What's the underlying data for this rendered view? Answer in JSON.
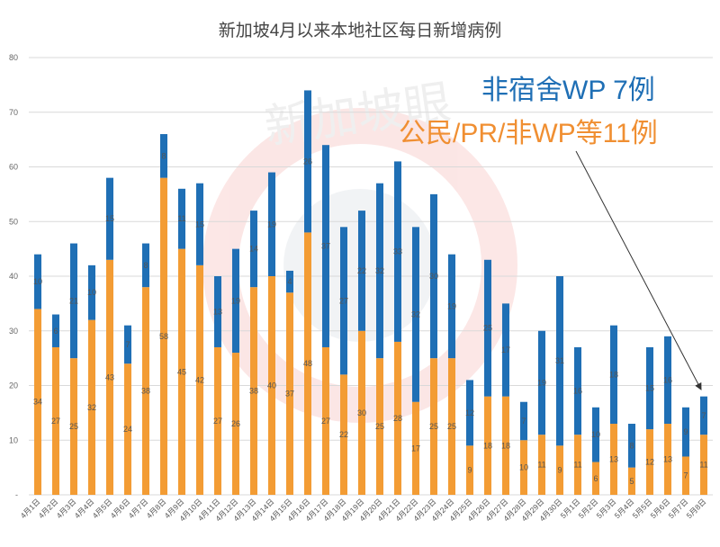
{
  "chart_data": {
    "type": "bar",
    "stacked": true,
    "title": "新加坡4月以来本地社区每日新增病例",
    "xlabel": "",
    "ylabel": "",
    "ylim": [
      0,
      80
    ],
    "yticks": [
      "-",
      "10",
      "20",
      "30",
      "40",
      "50",
      "60",
      "70",
      "80"
    ],
    "grid": true,
    "legend": "none",
    "categories": [
      "4月1日",
      "4月2日",
      "4月3日",
      "4月4日",
      "4月5日",
      "4月6日",
      "4月7日",
      "4月8日",
      "4月9日",
      "4月10日",
      "4月11日",
      "4月12日",
      "4月13日",
      "4月14日",
      "4月15日",
      "4月16日",
      "4月17日",
      "4月18日",
      "4月19日",
      "4月20日",
      "4月21日",
      "4月22日",
      "4月23日",
      "4月24日",
      "4月25日",
      "4月26日",
      "4月27日",
      "4月28日",
      "4月29日",
      "4月30日",
      "5月1日",
      "5月2日",
      "5月3日",
      "5月4日",
      "5月5日",
      "5月6日",
      "5月7日",
      "5月8日"
    ],
    "series": [
      {
        "color": "#f39c34",
        "values": [
          34,
          27,
          25,
          32,
          43,
          24,
          38,
          58,
          45,
          42,
          27,
          26,
          38,
          40,
          37,
          48,
          27,
          22,
          30,
          25,
          28,
          17,
          25,
          25,
          9,
          18,
          18,
          10,
          11,
          9,
          11,
          6,
          13,
          5,
          12,
          13,
          7,
          11
        ]
      },
      {
        "color": "#1f6fb5",
        "values": [
          10,
          6,
          21,
          10,
          15,
          7,
          8,
          8,
          11,
          15,
          13,
          19,
          14,
          19,
          4,
          26,
          37,
          27,
          22,
          32,
          33,
          32,
          30,
          19,
          12,
          25,
          17,
          7,
          19,
          31,
          16,
          10,
          18,
          8,
          15,
          16,
          9,
          7
        ]
      }
    ],
    "annotations": [
      "非宿舍WP 7例",
      "公民/PR/非WP等11例"
    ],
    "watermark": "新加坡眼"
  }
}
